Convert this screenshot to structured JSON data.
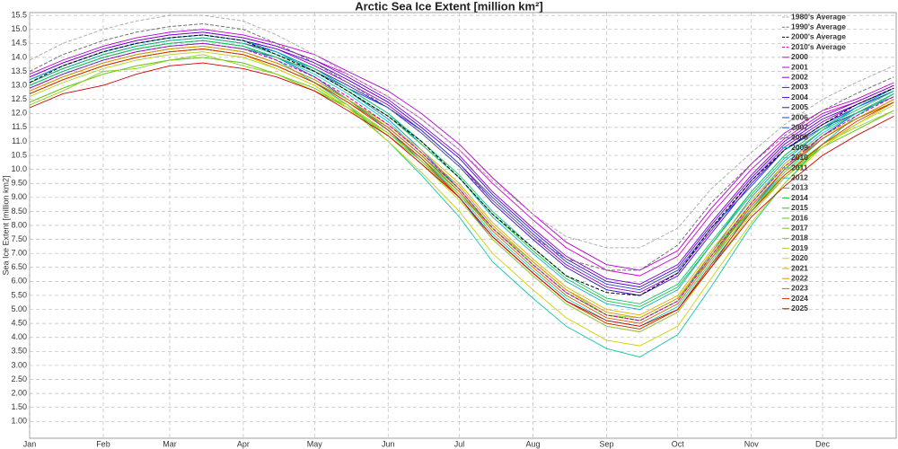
{
  "chart_data": {
    "type": "line",
    "title": "Arctic Sea Ice Extent [million km²]",
    "y_label": "Sea Ice Extent [million km2]",
    "x": [
      1,
      15,
      32,
      46,
      60,
      74,
      91,
      105,
      121,
      135,
      152,
      166,
      182,
      196,
      213,
      227,
      244,
      258,
      274,
      288,
      305,
      319,
      335,
      349,
      365
    ],
    "xlim": [
      1,
      366
    ],
    "xticks": [
      {
        "value": 1,
        "label": "Jan"
      },
      {
        "value": 32,
        "label": "Feb"
      },
      {
        "value": 60,
        "label": "Mar"
      },
      {
        "value": 91,
        "label": "Apr"
      },
      {
        "value": 121,
        "label": "May"
      },
      {
        "value": 152,
        "label": "Jun"
      },
      {
        "value": 182,
        "label": "Jul"
      },
      {
        "value": 213,
        "label": "Aug"
      },
      {
        "value": 244,
        "label": "Sep"
      },
      {
        "value": 274,
        "label": "Oct"
      },
      {
        "value": 305,
        "label": "Nov"
      },
      {
        "value": 335,
        "label": "Dec"
      }
    ],
    "ylim": [
      0.4,
      15.6
    ],
    "yticks": [
      {
        "value": 1,
        "label": "1.00"
      },
      {
        "value": 1.5,
        "label": "1.50"
      },
      {
        "value": 2,
        "label": "2.00"
      },
      {
        "value": 2.5,
        "label": "2.50"
      },
      {
        "value": 3,
        "label": "3.00"
      },
      {
        "value": 3.5,
        "label": "3.50"
      },
      {
        "value": 4,
        "label": "4.00"
      },
      {
        "value": 4.5,
        "label": "4.50"
      },
      {
        "value": 5,
        "label": "5.00"
      },
      {
        "value": 5.5,
        "label": "5.50"
      },
      {
        "value": 6,
        "label": "6.00"
      },
      {
        "value": 6.5,
        "label": "6.50"
      },
      {
        "value": 7,
        "label": "7.00"
      },
      {
        "value": 7.5,
        "label": "7.50"
      },
      {
        "value": 8,
        "label": "8.00"
      },
      {
        "value": 8.5,
        "label": "8.50"
      },
      {
        "value": 9,
        "label": "9.00"
      },
      {
        "value": 9.5,
        "label": "9.50"
      },
      {
        "value": 10,
        "label": "10.0"
      },
      10.5,
      {
        "value": 11,
        "label": "11.0"
      },
      11.5,
      {
        "value": 12,
        "label": "12.0"
      },
      12.5,
      {
        "value": 13,
        "label": "13.0"
      },
      13.5,
      {
        "value": 14,
        "label": "14.0"
      },
      14.5,
      {
        "value": 15,
        "label": "15.0"
      },
      15.5
    ],
    "grid": true,
    "legend": "top-right",
    "series": [
      {
        "name": "1980's Average",
        "color": "#b0b0b0",
        "style": "dashed",
        "values": [
          13.9,
          14.5,
          15.0,
          15.3,
          15.5,
          15.5,
          15.3,
          14.8,
          14.1,
          13.4,
          12.6,
          11.8,
          10.7,
          9.6,
          8.4,
          7.6,
          7.2,
          7.2,
          7.9,
          9.3,
          10.6,
          11.6,
          12.5,
          13.1,
          13.7
        ]
      },
      {
        "name": "1990's Average",
        "color": "#707070",
        "style": "dashed",
        "values": [
          13.5,
          14.1,
          14.6,
          14.9,
          15.1,
          15.2,
          15.0,
          14.5,
          13.8,
          13.1,
          12.2,
          11.3,
          10.1,
          8.9,
          7.6,
          6.8,
          6.4,
          6.4,
          7.3,
          8.8,
          10.2,
          11.2,
          12.1,
          12.7,
          13.3
        ]
      },
      {
        "name": "2000's Average",
        "color": "#000000",
        "style": "dashed",
        "values": [
          13.1,
          13.7,
          14.2,
          14.5,
          14.7,
          14.8,
          14.6,
          14.1,
          13.5,
          12.8,
          11.9,
          11.0,
          9.7,
          8.4,
          7.2,
          6.2,
          5.6,
          5.5,
          6.3,
          7.9,
          9.6,
          10.7,
          11.6,
          12.3,
          12.9
        ]
      },
      {
        "name": "2010's Average",
        "color": "#cc00aa",
        "style": "dashed",
        "values": [
          12.9,
          13.4,
          13.9,
          14.2,
          14.4,
          14.5,
          14.3,
          13.9,
          13.3,
          12.6,
          11.6,
          10.6,
          9.3,
          7.9,
          6.6,
          5.6,
          4.8,
          4.6,
          5.3,
          6.9,
          8.8,
          10.1,
          11.2,
          11.9,
          12.6
        ]
      },
      {
        "name": "2000",
        "color": "#cc00cc",
        "values": [
          13.3,
          13.8,
          14.3,
          14.6,
          14.8,
          14.9,
          14.7,
          14.4,
          13.9,
          13.4,
          12.6,
          11.8,
          10.7,
          9.5,
          8.2,
          7.2,
          6.4,
          6.2,
          6.9,
          8.4,
          10.0,
          11.1,
          12.0,
          12.4,
          13.0
        ]
      },
      {
        "name": "2001",
        "color": "#b400d0",
        "values": [
          13.4,
          13.9,
          14.4,
          14.7,
          14.9,
          15.0,
          14.8,
          14.5,
          14.1,
          13.5,
          12.8,
          12.0,
          10.9,
          9.7,
          8.4,
          7.4,
          6.6,
          6.4,
          7.1,
          8.6,
          10.2,
          11.3,
          12.1,
          12.5,
          13.1
        ]
      },
      {
        "name": "2002",
        "color": "#9a00d4",
        "values": [
          13.2,
          13.7,
          14.2,
          14.5,
          14.7,
          14.8,
          14.6,
          14.3,
          13.7,
          13.1,
          12.3,
          11.4,
          10.2,
          8.9,
          7.6,
          6.6,
          5.8,
          5.6,
          6.3,
          7.8,
          9.6,
          10.8,
          11.7,
          12.3,
          12.9
        ]
      },
      {
        "name": "2003",
        "color": "#7a00d0",
        "values": [
          13.3,
          13.8,
          14.3,
          14.6,
          14.8,
          14.9,
          14.7,
          14.4,
          13.9,
          13.3,
          12.5,
          11.6,
          10.5,
          9.2,
          7.9,
          6.9,
          6.1,
          5.9,
          6.6,
          8.1,
          9.8,
          11.0,
          11.9,
          12.4,
          13.0
        ]
      },
      {
        "name": "2004",
        "color": "#4a00cc",
        "values": [
          13.2,
          13.7,
          14.2,
          14.5,
          14.7,
          14.8,
          14.6,
          14.3,
          13.8,
          13.2,
          12.4,
          11.5,
          10.4,
          9.1,
          7.8,
          6.8,
          6.0,
          5.8,
          6.5,
          8.0,
          9.7,
          10.9,
          11.8,
          12.3,
          12.9
        ]
      },
      {
        "name": "2005",
        "color": "#2a10c8",
        "values": [
          13.1,
          13.6,
          14.1,
          14.4,
          14.6,
          14.7,
          14.5,
          14.2,
          13.6,
          13.0,
          12.2,
          11.3,
          10.1,
          8.8,
          7.5,
          6.5,
          5.7,
          5.5,
          6.2,
          7.7,
          9.5,
          10.7,
          11.6,
          12.2,
          12.8
        ]
      },
      {
        "name": "2006",
        "color": "#1a40d0",
        "values": [
          12.9,
          13.4,
          13.9,
          14.2,
          14.4,
          14.5,
          14.3,
          14.0,
          13.5,
          12.9,
          12.2,
          11.4,
          10.2,
          9.0,
          7.7,
          6.7,
          5.9,
          5.7,
          6.4,
          7.9,
          9.4,
          10.7,
          11.5,
          12.0,
          12.6
        ]
      },
      {
        "name": "2007",
        "color": "#1060d0",
        "values": [
          13.0,
          13.5,
          14.0,
          14.3,
          14.5,
          14.6,
          14.4,
          14.0,
          13.3,
          12.5,
          11.4,
          10.3,
          9.0,
          7.5,
          6.2,
          5.2,
          4.4,
          4.2,
          4.9,
          6.5,
          8.6,
          10.0,
          11.2,
          12.0,
          12.7
        ]
      },
      {
        "name": "2008",
        "color": "#1090d0",
        "values": [
          13.2,
          13.7,
          14.2,
          14.5,
          14.7,
          14.8,
          14.6,
          14.2,
          13.5,
          12.8,
          11.8,
          10.7,
          9.3,
          7.9,
          6.6,
          5.6,
          4.8,
          4.6,
          5.3,
          7.0,
          9.0,
          10.3,
          11.4,
          12.2,
          12.9
        ]
      },
      {
        "name": "2009",
        "color": "#10b0d0",
        "values": [
          13.2,
          13.7,
          14.2,
          14.5,
          14.7,
          14.8,
          14.6,
          14.2,
          13.6,
          12.9,
          12.0,
          10.9,
          9.7,
          8.3,
          7.0,
          6.0,
          5.2,
          5.0,
          5.7,
          7.3,
          9.2,
          10.5,
          11.5,
          12.2,
          12.9
        ]
      },
      {
        "name": "2010",
        "color": "#10c8d8",
        "values": [
          13.0,
          13.5,
          14.0,
          14.3,
          14.5,
          14.6,
          14.4,
          14.0,
          13.4,
          12.7,
          11.7,
          10.6,
          9.3,
          7.9,
          6.6,
          5.6,
          4.8,
          4.6,
          5.3,
          6.9,
          8.8,
          10.2,
          11.3,
          12.0,
          12.7
        ]
      },
      {
        "name": "2011",
        "color": "#10d0b8",
        "values": [
          12.8,
          13.3,
          13.8,
          14.1,
          14.3,
          14.4,
          14.2,
          13.8,
          13.2,
          12.5,
          11.4,
          10.4,
          9.1,
          7.7,
          6.4,
          5.4,
          4.6,
          4.4,
          5.1,
          6.7,
          8.6,
          9.9,
          11.1,
          11.8,
          12.5
        ]
      },
      {
        "name": "2012",
        "color": "#10c8a8",
        "values": [
          13.0,
          13.5,
          14.0,
          14.3,
          14.5,
          14.6,
          14.4,
          13.9,
          13.1,
          12.3,
          11.0,
          9.8,
          8.3,
          6.7,
          5.4,
          4.4,
          3.6,
          3.3,
          4.1,
          5.8,
          8.0,
          9.5,
          10.9,
          11.9,
          12.7
        ]
      },
      {
        "name": "2013",
        "color": "#10c070",
        "values": [
          13.1,
          13.6,
          14.1,
          14.4,
          14.6,
          14.7,
          14.5,
          14.1,
          13.6,
          12.9,
          12.0,
          11.0,
          9.8,
          8.5,
          7.2,
          6.2,
          5.4,
          5.2,
          5.9,
          7.4,
          9.2,
          10.5,
          11.5,
          12.1,
          12.8
        ]
      },
      {
        "name": "2014",
        "color": "#20c040",
        "values": [
          13.0,
          13.5,
          14.0,
          14.3,
          14.5,
          14.6,
          14.4,
          14.0,
          13.5,
          12.8,
          11.9,
          10.9,
          9.7,
          8.4,
          7.1,
          6.1,
          5.3,
          5.1,
          5.8,
          7.3,
          9.1,
          10.4,
          11.4,
          12.0,
          12.7
        ]
      },
      {
        "name": "2015",
        "color": "#30c020",
        "values": [
          12.7,
          13.2,
          13.7,
          14.0,
          14.2,
          14.3,
          14.1,
          13.7,
          13.1,
          12.5,
          11.5,
          10.5,
          9.3,
          7.9,
          6.6,
          5.6,
          4.8,
          4.6,
          5.3,
          6.9,
          8.7,
          10.0,
          11.1,
          11.8,
          12.4
        ]
      },
      {
        "name": "2016",
        "color": "#50c820",
        "values": [
          12.4,
          12.9,
          13.4,
          13.7,
          13.9,
          14.0,
          13.8,
          13.4,
          12.8,
          12.2,
          11.2,
          10.3,
          9.0,
          7.6,
          6.3,
          5.3,
          4.5,
          4.3,
          5.0,
          6.6,
          8.5,
          9.7,
          10.8,
          11.4,
          12.1
        ]
      },
      {
        "name": "2017",
        "color": "#70c820",
        "values": [
          12.4,
          12.9,
          13.4,
          13.7,
          13.9,
          14.0,
          13.8,
          13.4,
          12.9,
          12.2,
          11.3,
          10.4,
          9.2,
          7.9,
          6.6,
          5.6,
          4.8,
          4.6,
          5.3,
          6.9,
          8.6,
          9.8,
          10.8,
          11.4,
          12.1
        ]
      },
      {
        "name": "2018",
        "color": "#90d020",
        "values": [
          12.3,
          12.8,
          13.5,
          13.6,
          13.9,
          14.1,
          13.7,
          13.4,
          12.8,
          12.3,
          11.3,
          10.3,
          9.1,
          7.9,
          6.7,
          5.7,
          4.8,
          4.7,
          5.4,
          6.8,
          8.5,
          9.9,
          10.9,
          11.5,
          12.1
        ]
      },
      {
        "name": "2019",
        "color": "#b0d020",
        "values": [
          12.6,
          13.1,
          13.6,
          13.9,
          14.1,
          14.2,
          14.0,
          13.6,
          13.0,
          12.3,
          11.2,
          10.2,
          8.9,
          7.5,
          6.2,
          5.2,
          4.4,
          4.2,
          4.9,
          6.5,
          8.4,
          9.7,
          10.9,
          11.6,
          12.3
        ]
      },
      {
        "name": "2020",
        "color": "#d0d000",
        "values": [
          12.7,
          13.2,
          13.7,
          14.0,
          14.2,
          14.3,
          14.1,
          13.6,
          13.0,
          12.2,
          11.0,
          9.9,
          8.5,
          7.0,
          5.7,
          4.7,
          3.9,
          3.7,
          4.4,
          6.1,
          8.1,
          9.5,
          10.8,
          11.6,
          12.4
        ]
      },
      {
        "name": "2021",
        "color": "#d8b000",
        "values": [
          12.8,
          13.3,
          13.8,
          14.1,
          14.3,
          14.4,
          14.2,
          13.8,
          13.2,
          12.5,
          11.6,
          10.7,
          9.5,
          8.1,
          6.8,
          5.8,
          5.0,
          4.8,
          5.5,
          7.1,
          8.9,
          10.2,
          11.2,
          11.8,
          12.5
        ]
      },
      {
        "name": "2022",
        "color": "#d89000",
        "values": [
          12.8,
          13.3,
          13.8,
          14.1,
          14.3,
          14.4,
          14.2,
          13.8,
          13.2,
          12.5,
          11.6,
          10.6,
          9.4,
          8.0,
          6.7,
          5.7,
          4.9,
          4.7,
          5.4,
          7.0,
          8.8,
          10.1,
          11.1,
          11.8,
          12.5
        ]
      },
      {
        "name": "2023",
        "color": "#d86000",
        "values": [
          12.7,
          13.2,
          13.7,
          14.0,
          14.2,
          14.3,
          14.1,
          13.7,
          13.1,
          12.4,
          11.5,
          10.5,
          9.2,
          7.8,
          6.5,
          5.5,
          4.7,
          4.5,
          5.2,
          6.8,
          8.7,
          10.0,
          11.1,
          11.8,
          12.4
        ]
      },
      {
        "name": "2024",
        "color": "#d83000",
        "values": [
          12.7,
          13.2,
          13.7,
          14.0,
          14.2,
          14.3,
          14.1,
          13.7,
          13.1,
          12.4,
          11.4,
          10.4,
          9.0,
          7.6,
          6.3,
          5.3,
          4.5,
          4.3,
          5.0,
          6.6,
          8.5,
          9.8,
          10.9,
          11.7,
          12.4
        ]
      },
      {
        "name": "2025",
        "color": "#d00000",
        "values": [
          12.2,
          12.7,
          13.0,
          13.4,
          13.7,
          13.8,
          13.6,
          13.3,
          12.8,
          12.1,
          11.2,
          10.2,
          9.0,
          7.6,
          6.3,
          5.3,
          4.6,
          4.4,
          5.0,
          6.5,
          8.3,
          9.4,
          10.5,
          11.2,
          11.9
        ]
      }
    ]
  }
}
